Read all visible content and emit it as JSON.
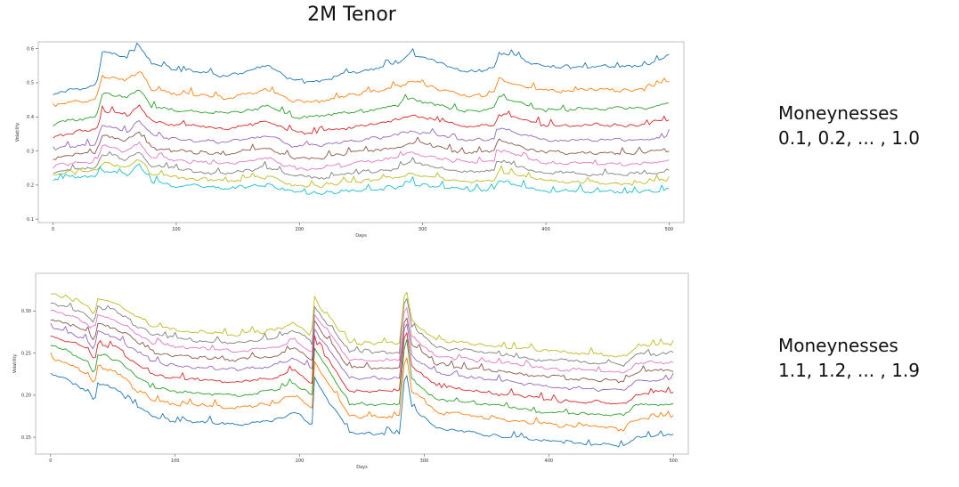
{
  "page": {
    "title": "2M Tenor",
    "annotations": [
      {
        "line1": "Moneynesses",
        "line2": "0.1, 0.2, ... , 1.0"
      },
      {
        "line1": "Moneynesses",
        "line2": "1.1, 1.2, ... , 1.9"
      }
    ]
  },
  "chart_data": [
    {
      "type": "line",
      "xlabel": "Days",
      "ylabel": "Volatility",
      "xlim": [
        -12,
        512
      ],
      "ylim": [
        0.09,
        0.62
      ],
      "xticks": [
        0,
        100,
        200,
        300,
        400,
        500
      ],
      "yticks": [
        0.1,
        0.2,
        0.3,
        0.4,
        0.5,
        0.6
      ],
      "ytick_labels": [
        "0.1",
        "0.2",
        "0.3",
        "0.4",
        "0.5",
        "0.6"
      ],
      "grid": false,
      "x_anchors": [
        0,
        5,
        35,
        40,
        60,
        70,
        80,
        100,
        140,
        175,
        195,
        215,
        280,
        290,
        335,
        358,
        362,
        400,
        480,
        500
      ],
      "series": [
        {
          "color": "#1f77b4",
          "values": [
            0.465,
            0.47,
            0.49,
            0.59,
            0.575,
            0.605,
            0.555,
            0.54,
            0.52,
            0.55,
            0.505,
            0.505,
            0.56,
            0.585,
            0.53,
            0.545,
            0.59,
            0.545,
            0.55,
            0.585
          ]
        },
        {
          "color": "#ff7f0e",
          "values": [
            0.43,
            0.44,
            0.45,
            0.52,
            0.505,
            0.535,
            0.48,
            0.47,
            0.455,
            0.48,
            0.445,
            0.445,
            0.49,
            0.505,
            0.46,
            0.47,
            0.51,
            0.475,
            0.48,
            0.505
          ]
        },
        {
          "color": "#2ca02c",
          "values": [
            0.375,
            0.385,
            0.4,
            0.47,
            0.455,
            0.48,
            0.43,
            0.42,
            0.41,
            0.43,
            0.4,
            0.4,
            0.435,
            0.455,
            0.415,
            0.425,
            0.46,
            0.42,
            0.425,
            0.445
          ]
        },
        {
          "color": "#d62728",
          "values": [
            0.34,
            0.35,
            0.36,
            0.42,
            0.405,
            0.43,
            0.385,
            0.375,
            0.365,
            0.385,
            0.355,
            0.355,
            0.39,
            0.405,
            0.37,
            0.378,
            0.41,
            0.375,
            0.378,
            0.395
          ]
        },
        {
          "color": "#9467bd",
          "values": [
            0.3,
            0.31,
            0.32,
            0.375,
            0.36,
            0.385,
            0.345,
            0.335,
            0.325,
            0.345,
            0.315,
            0.315,
            0.345,
            0.36,
            0.33,
            0.335,
            0.365,
            0.33,
            0.332,
            0.345
          ]
        },
        {
          "color": "#8c564b",
          "values": [
            0.275,
            0.285,
            0.295,
            0.345,
            0.33,
            0.355,
            0.31,
            0.3,
            0.29,
            0.31,
            0.28,
            0.28,
            0.31,
            0.325,
            0.295,
            0.3,
            0.33,
            0.295,
            0.295,
            0.305
          ]
        },
        {
          "color": "#e377c2",
          "values": [
            0.25,
            0.26,
            0.27,
            0.315,
            0.3,
            0.325,
            0.28,
            0.27,
            0.26,
            0.28,
            0.25,
            0.25,
            0.28,
            0.295,
            0.265,
            0.27,
            0.3,
            0.265,
            0.262,
            0.275
          ]
        },
        {
          "color": "#7f7f7f",
          "values": [
            0.235,
            0.245,
            0.25,
            0.29,
            0.275,
            0.3,
            0.255,
            0.245,
            0.235,
            0.25,
            0.225,
            0.222,
            0.25,
            0.265,
            0.235,
            0.24,
            0.27,
            0.235,
            0.232,
            0.242
          ]
        },
        {
          "color": "#bcbd22",
          "values": [
            0.225,
            0.235,
            0.24,
            0.265,
            0.255,
            0.275,
            0.232,
            0.222,
            0.212,
            0.225,
            0.2,
            0.198,
            0.222,
            0.235,
            0.21,
            0.215,
            0.24,
            0.21,
            0.205,
            0.215
          ]
        },
        {
          "color": "#17becf",
          "values": [
            0.215,
            0.222,
            0.225,
            0.24,
            0.232,
            0.255,
            0.21,
            0.2,
            0.19,
            0.2,
            0.178,
            0.175,
            0.195,
            0.205,
            0.185,
            0.19,
            0.21,
            0.185,
            0.18,
            0.19
          ]
        }
      ]
    },
    {
      "type": "line",
      "xlabel": "Days",
      "ylabel": "Volatility",
      "xlim": [
        -12,
        512
      ],
      "ylim": [
        0.13,
        0.345
      ],
      "xticks": [
        0,
        100,
        200,
        300,
        400,
        500
      ],
      "yticks": [
        0.15,
        0.2,
        0.25,
        0.3
      ],
      "ytick_labels": [
        "0.15",
        "0.20",
        "0.25",
        "0.30"
      ],
      "grid": false,
      "x_anchors": [
        0,
        10,
        30,
        35,
        38,
        55,
        70,
        78,
        80,
        100,
        150,
        180,
        195,
        210,
        212,
        240,
        280,
        285,
        290,
        310,
        360,
        400,
        460,
        470,
        500
      ],
      "series": [
        {
          "color": "#1f77b4",
          "values": [
            0.225,
            0.22,
            0.205,
            0.19,
            0.215,
            0.205,
            0.185,
            0.18,
            0.175,
            0.17,
            0.165,
            0.17,
            0.18,
            0.165,
            0.22,
            0.155,
            0.155,
            0.235,
            0.185,
            0.16,
            0.152,
            0.145,
            0.14,
            0.15,
            0.155
          ]
        },
        {
          "color": "#ff7f0e",
          "values": [
            0.245,
            0.24,
            0.225,
            0.21,
            0.235,
            0.225,
            0.205,
            0.2,
            0.195,
            0.19,
            0.185,
            0.19,
            0.2,
            0.185,
            0.24,
            0.175,
            0.175,
            0.255,
            0.205,
            0.18,
            0.172,
            0.165,
            0.16,
            0.172,
            0.175
          ]
        },
        {
          "color": "#2ca02c",
          "values": [
            0.26,
            0.255,
            0.24,
            0.225,
            0.25,
            0.24,
            0.22,
            0.215,
            0.21,
            0.205,
            0.2,
            0.205,
            0.215,
            0.2,
            0.255,
            0.19,
            0.19,
            0.27,
            0.22,
            0.195,
            0.188,
            0.18,
            0.175,
            0.188,
            0.19
          ]
        },
        {
          "color": "#d62728",
          "values": [
            0.27,
            0.267,
            0.255,
            0.24,
            0.262,
            0.255,
            0.235,
            0.23,
            0.225,
            0.22,
            0.215,
            0.22,
            0.23,
            0.215,
            0.265,
            0.205,
            0.205,
            0.282,
            0.235,
            0.21,
            0.202,
            0.195,
            0.19,
            0.202,
            0.205
          ]
        },
        {
          "color": "#9467bd",
          "values": [
            0.28,
            0.278,
            0.265,
            0.255,
            0.275,
            0.268,
            0.25,
            0.245,
            0.24,
            0.235,
            0.23,
            0.235,
            0.245,
            0.23,
            0.278,
            0.22,
            0.22,
            0.293,
            0.248,
            0.225,
            0.217,
            0.21,
            0.205,
            0.217,
            0.22
          ]
        },
        {
          "color": "#8c564b",
          "values": [
            0.29,
            0.288,
            0.275,
            0.265,
            0.285,
            0.278,
            0.262,
            0.257,
            0.252,
            0.247,
            0.242,
            0.247,
            0.257,
            0.242,
            0.288,
            0.232,
            0.232,
            0.302,
            0.26,
            0.237,
            0.228,
            0.222,
            0.217,
            0.228,
            0.23
          ]
        },
        {
          "color": "#e377c2",
          "values": [
            0.3,
            0.298,
            0.285,
            0.275,
            0.295,
            0.288,
            0.272,
            0.267,
            0.262,
            0.257,
            0.252,
            0.257,
            0.267,
            0.252,
            0.297,
            0.242,
            0.242,
            0.312,
            0.27,
            0.247,
            0.238,
            0.232,
            0.227,
            0.238,
            0.24
          ]
        },
        {
          "color": "#7f7f7f",
          "values": [
            0.31,
            0.308,
            0.295,
            0.285,
            0.305,
            0.298,
            0.282,
            0.277,
            0.272,
            0.267,
            0.262,
            0.267,
            0.277,
            0.262,
            0.306,
            0.252,
            0.252,
            0.322,
            0.28,
            0.257,
            0.248,
            0.242,
            0.237,
            0.248,
            0.25
          ]
        },
        {
          "color": "#bcbd22",
          "values": [
            0.32,
            0.318,
            0.305,
            0.295,
            0.315,
            0.308,
            0.292,
            0.287,
            0.282,
            0.277,
            0.272,
            0.277,
            0.287,
            0.272,
            0.315,
            0.262,
            0.262,
            0.332,
            0.29,
            0.267,
            0.258,
            0.252,
            0.247,
            0.258,
            0.26
          ]
        }
      ]
    }
  ]
}
